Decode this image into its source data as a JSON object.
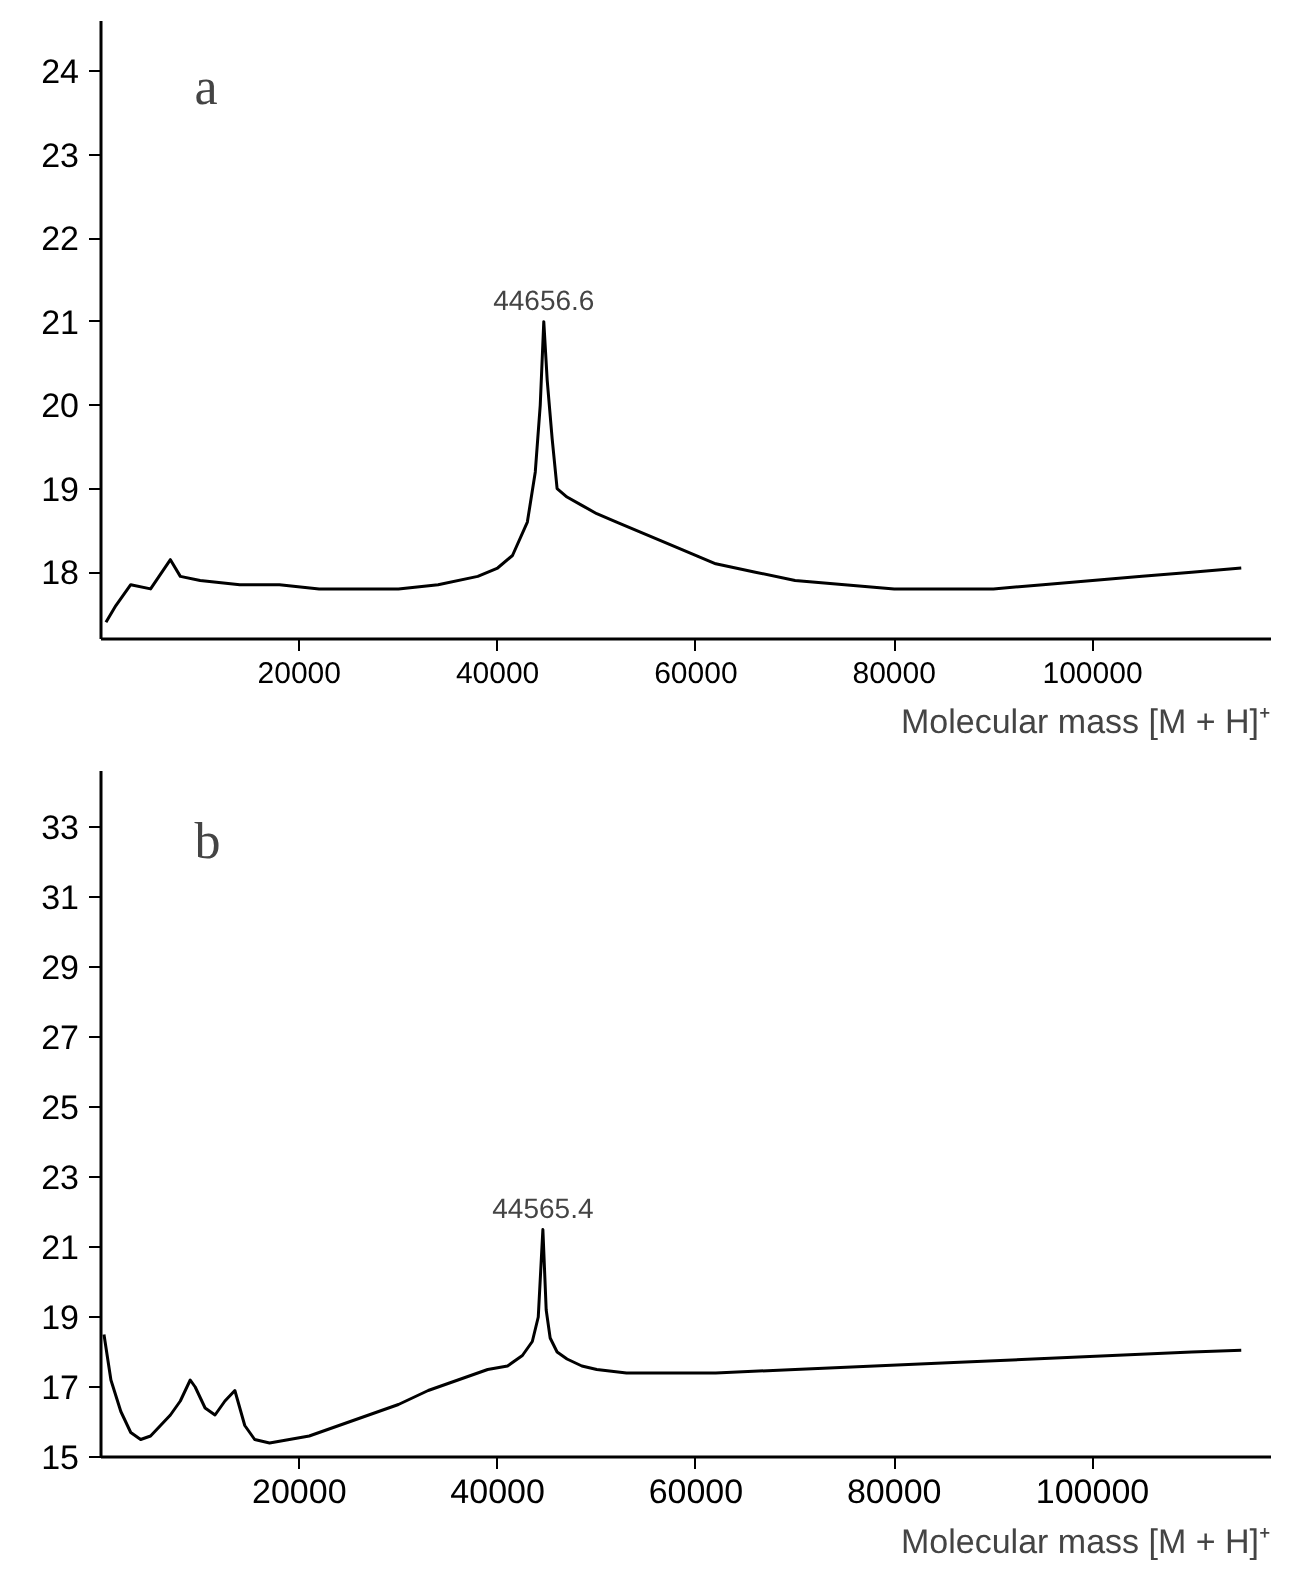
{
  "chart_data": [
    {
      "type": "line",
      "title": "a",
      "xlabel": "Molecular mass [M + H]⁺",
      "xlim": [
        0,
        118000
      ],
      "xticks": [
        20000,
        40000,
        60000,
        80000,
        100000
      ],
      "ylim": [
        17.2,
        24.6
      ],
      "yticks": [
        18,
        19,
        20,
        21,
        22,
        23,
        24
      ],
      "grid": false,
      "annotations": [
        {
          "text": "44656.6",
          "x": 44656.6,
          "y": 21.0
        }
      ],
      "series": [
        {
          "color": "#000000",
          "x": [
            500,
            1500,
            3000,
            5000,
            7000,
            8000,
            10000,
            14000,
            18000,
            22000,
            26000,
            30000,
            34000,
            38000,
            40000,
            41500,
            43000,
            43800,
            44300,
            44656.6,
            45000,
            45500,
            46000,
            47000,
            48500,
            50000,
            52000,
            55000,
            58000,
            62000,
            66000,
            70000,
            75000,
            80000,
            85000,
            90000,
            95000,
            100000,
            105000,
            110000,
            115000
          ],
          "values": [
            17.4,
            17.6,
            17.85,
            17.8,
            18.15,
            17.95,
            17.9,
            17.85,
            17.85,
            17.8,
            17.8,
            17.8,
            17.85,
            17.95,
            18.05,
            18.2,
            18.6,
            19.2,
            20.0,
            21.0,
            20.3,
            19.6,
            19.0,
            18.9,
            18.8,
            18.7,
            18.6,
            18.45,
            18.3,
            18.1,
            18.0,
            17.9,
            17.85,
            17.8,
            17.8,
            17.8,
            17.85,
            17.9,
            17.95,
            18.0,
            18.05
          ]
        }
      ]
    },
    {
      "type": "line",
      "title": "b",
      "xlabel": "Molecular mass [M + H]⁺",
      "xlim": [
        0,
        118000
      ],
      "xticks": [
        20000,
        40000,
        60000,
        80000,
        100000
      ],
      "ylim": [
        15,
        34.6
      ],
      "yticks": [
        15,
        17,
        19,
        21,
        23,
        25,
        27,
        29,
        31,
        33
      ],
      "grid": false,
      "annotations": [
        {
          "text": "44565.4",
          "x": 44565.4,
          "y": 21.5
        }
      ],
      "series": [
        {
          "color": "#000000",
          "x": [
            300,
            1000,
            2000,
            3000,
            4000,
            5000,
            6000,
            7000,
            8000,
            9000,
            9500,
            10500,
            11500,
            12500,
            13500,
            14500,
            15500,
            17000,
            19000,
            21000,
            24000,
            27000,
            30000,
            33000,
            36000,
            39000,
            41000,
            42500,
            43500,
            44100,
            44565.4,
            44900,
            45300,
            46000,
            47000,
            48500,
            50000,
            53000,
            57000,
            62000,
            70000,
            78000,
            86000,
            94000,
            102000,
            110000,
            115000
          ],
          "values": [
            18.5,
            17.2,
            16.3,
            15.7,
            15.5,
            15.6,
            15.9,
            16.2,
            16.6,
            17.2,
            17.0,
            16.4,
            16.2,
            16.6,
            16.9,
            15.9,
            15.5,
            15.4,
            15.5,
            15.6,
            15.9,
            16.2,
            16.5,
            16.9,
            17.2,
            17.5,
            17.6,
            17.9,
            18.3,
            19.0,
            21.5,
            19.2,
            18.4,
            18.0,
            17.8,
            17.6,
            17.5,
            17.4,
            17.4,
            17.4,
            17.5,
            17.6,
            17.7,
            17.8,
            17.9,
            18.0,
            18.05
          ]
        }
      ]
    }
  ]
}
